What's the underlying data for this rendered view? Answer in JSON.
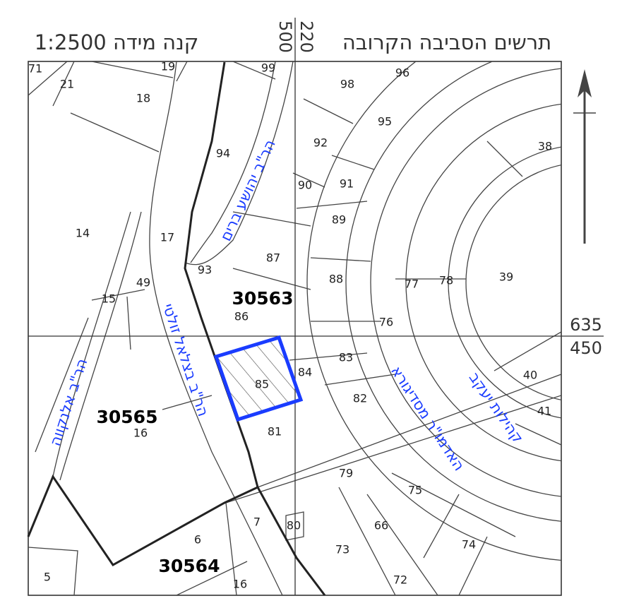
{
  "header": {
    "title": "תרשים הסביבה הקרובה",
    "scale": "קנה מידה 1:2500"
  },
  "coordinates": {
    "top_left": "500",
    "top_right": "220",
    "right_upper": "635",
    "right_lower": "450"
  },
  "blocks": [
    "30563",
    "30565",
    "30564"
  ],
  "streets": [
    "הר\"ב יהושע ברים",
    "הר\"ב בצלאל זולטי",
    "הר\"ב אלנקווה",
    "האדמו\"ר מסדיגורא",
    "קהילות יעקב"
  ],
  "parcels": [
    "71",
    "21",
    "19",
    "18",
    "99",
    "98",
    "96",
    "95",
    "92",
    "91",
    "90",
    "89",
    "94",
    "17",
    "14",
    "93",
    "49",
    "15",
    "87",
    "88",
    "77",
    "78",
    "39",
    "38",
    "76",
    "86",
    "83",
    "84",
    "85",
    "82",
    "81",
    "40",
    "41",
    "16",
    "79",
    "75",
    "66",
    "74",
    "73",
    "72",
    "80",
    "7",
    "6",
    "5",
    "16"
  ]
}
